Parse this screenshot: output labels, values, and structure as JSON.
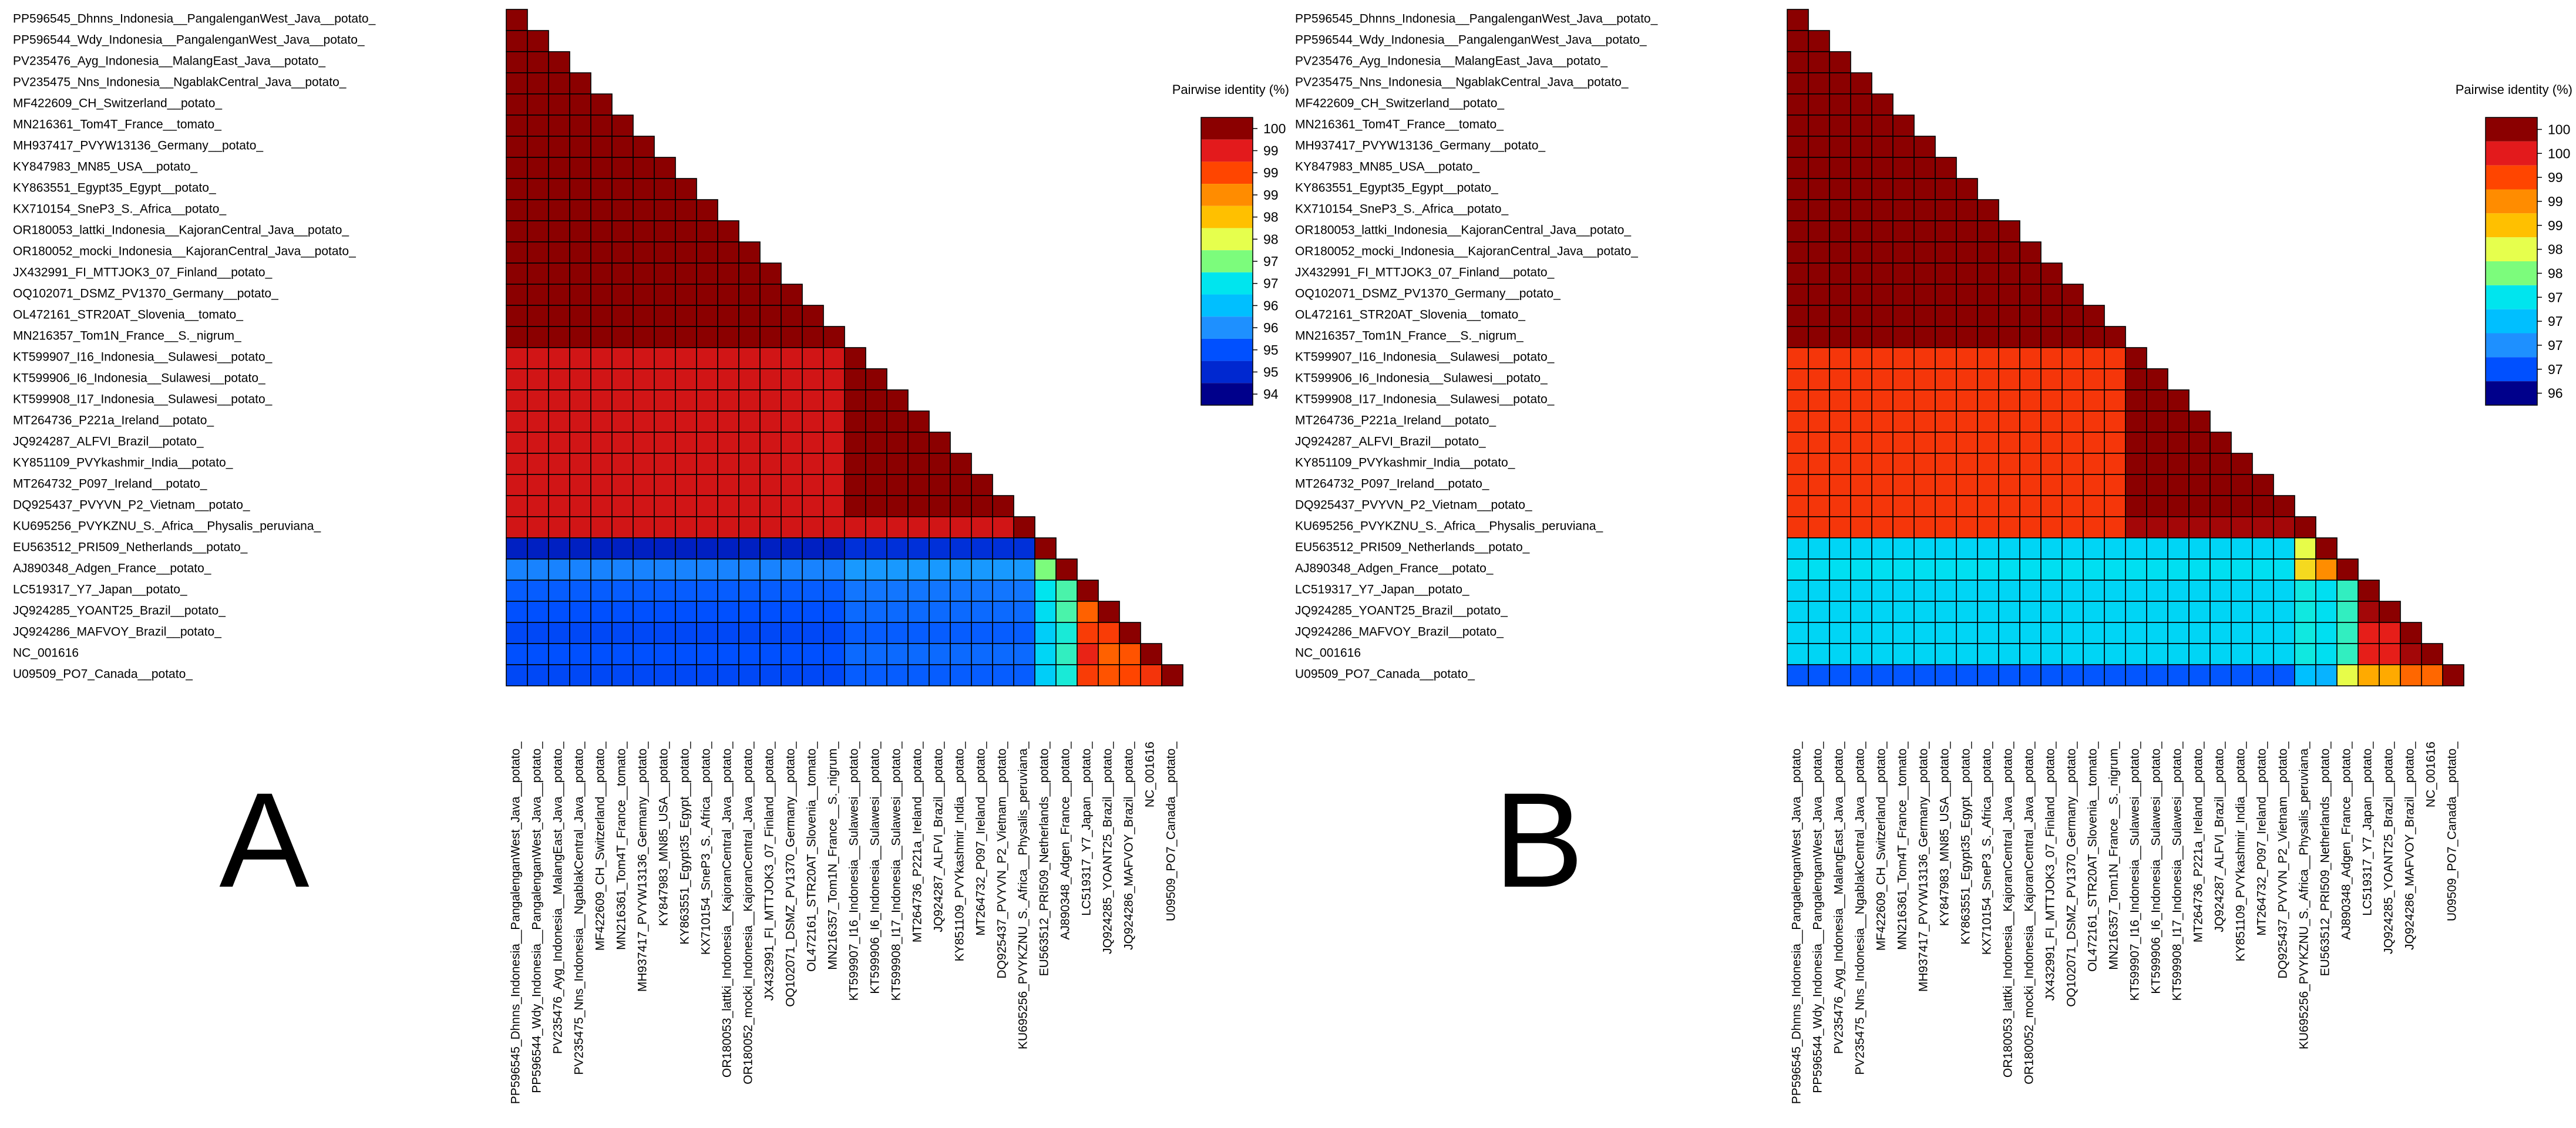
{
  "panels": [
    {
      "letter": "A",
      "legend_title": "Pairwise identity (%)",
      "legend_ticks": [
        "100",
        "99",
        "99",
        "99",
        "98",
        "98",
        "97",
        "97",
        "96",
        "96",
        "95",
        "95",
        "94"
      ],
      "colors": [
        "#8b0000",
        "#e31a1c",
        "#ff4500",
        "#ff8c00",
        "#ffc000",
        "#e6ff4d",
        "#7cfc7c",
        "#00e5ee",
        "#00bfff",
        "#1e90ff",
        "#0050ff",
        "#0028d0",
        "#00008b"
      ]
    },
    {
      "letter": "B",
      "legend_title": "Pairwise identity (%)",
      "legend_ticks": [
        "100",
        "100",
        "99",
        "99",
        "99",
        "98",
        "98",
        "97",
        "97",
        "97",
        "97",
        "96"
      ],
      "colors": [
        "#8b0000",
        "#e31a1c",
        "#ff4500",
        "#ff8c00",
        "#ffc000",
        "#e6ff4d",
        "#7cfc7c",
        "#00e5ee",
        "#00bfff",
        "#1e90ff",
        "#0050ff",
        "#00008b"
      ]
    }
  ],
  "chart_data": [
    {
      "type": "heatmap",
      "title": "A",
      "legend_title": "Pairwise identity (%)",
      "value_range": [
        94,
        100
      ],
      "labels": [
        "PP596545_Dhnns_Indonesia__PangalenganWest_Java__potato_",
        "PP596544_Wdy_Indonesia__PangalenganWest_Java__potato_",
        "PV235476_Ayg_Indonesia__MalangEast_Java__potato_",
        "PV235475_Nns_Indonesia__NgablakCentral_Java__potato_",
        "MF422609_CH_Switzerland__potato_",
        "MN216361_Tom4T_France__tomato_",
        "MH937417_PVYW13136_Germany__potato_",
        "KY847983_MN85_USA__potato_",
        "KY863551_Egypt35_Egypt__potato_",
        "KX710154_SneP3_S._Africa__potato_",
        "OR180053_lattki_Indonesia__KajoranCentral_Java__potato_",
        "OR180052_mocki_Indonesia__KajoranCentral_Java__potato_",
        "JX432991_FI_MTTJOK3_07_Finland__potato_",
        "OQ102071_DSMZ_PV1370_Germany__potato_",
        "OL472161_STR20AT_Slovenia__tomato_",
        "MN216357_Tom1N_France__S._nigrum_",
        "KT599907_I16_Indonesia__Sulawesi__potato_",
        "KT599906_I6_Indonesia__Sulawesi__potato_",
        "KT599908_I17_Indonesia__Sulawesi__potato_",
        "MT264736_P221a_Ireland__potato_",
        "JQ924287_ALFVI_Brazil__potato_",
        "KY851109_PVYkashmir_India__potato_",
        "MT264732_P097_Ireland__potato_",
        "DQ925437_PVYVN_P2_Vietnam__potato_",
        "KU695256_PVYKZNU_S._Africa__Physalis_peruviana_",
        "EU563512_PRI509_Netherlands__potato_",
        "AJ890348_Adgen_France__potato_",
        "LC519317_Y7_Japan__potato_",
        "JQ924285_YOANT25_Brazil__potato_",
        "JQ924286_MAFVOY_Brazil__potato_",
        "NC_001616",
        "U09509_PO7_Canada__potato_"
      ],
      "groups": [
        [
          0,
          15
        ],
        [
          16,
          23
        ],
        [
          24,
          24
        ],
        [
          25,
          25
        ],
        [
          26,
          26
        ],
        [
          27,
          27
        ],
        [
          28,
          28
        ],
        [
          29,
          29
        ],
        [
          30,
          30
        ],
        [
          31,
          31
        ]
      ],
      "group_matrix": [
        [
          100
        ],
        [
          99.6,
          100
        ],
        [
          99.6,
          99.6,
          100
        ],
        [
          94.4,
          94.6,
          94.6,
          100
        ],
        [
          95.4,
          95.6,
          95.6,
          97.0,
          100
        ],
        [
          95.1,
          95.3,
          95.3,
          96.5,
          96.8,
          100
        ],
        [
          95.0,
          95.2,
          95.2,
          96.4,
          96.8,
          98.8,
          100
        ],
        [
          94.9,
          95.1,
          95.1,
          96.2,
          96.6,
          99.1,
          99.1,
          100
        ],
        [
          95.0,
          95.2,
          95.2,
          96.3,
          96.7,
          99.4,
          98.8,
          98.9,
          100
        ],
        [
          94.9,
          95.1,
          95.1,
          96.2,
          96.6,
          99.1,
          98.9,
          99.0,
          99.2,
          100
        ]
      ]
    },
    {
      "type": "heatmap",
      "title": "B",
      "legend_title": "Pairwise identity (%)",
      "value_range": [
        96,
        100
      ],
      "labels": [
        "PP596545_Dhnns_Indonesia__PangalenganWest_Java__potato_",
        "PP596544_Wdy_Indonesia__PangalenganWest_Java__potato_",
        "PV235476_Ayg_Indonesia__MalangEast_Java__potato_",
        "PV235475_Nns_Indonesia__NgablakCentral_Java__potato_",
        "MF422609_CH_Switzerland__potato_",
        "MN216361_Tom4T_France__tomato_",
        "MH937417_PVYW13136_Germany__potato_",
        "KY847983_MN85_USA__potato_",
        "KY863551_Egypt35_Egypt__potato_",
        "KX710154_SneP3_S._Africa__potato_",
        "OR180053_lattki_Indonesia__KajoranCentral_Java__potato_",
        "OR180052_mocki_Indonesia__KajoranCentral_Java__potato_",
        "JX432991_FI_MTTJOK3_07_Finland__potato_",
        "OQ102071_DSMZ_PV1370_Germany__potato_",
        "OL472161_STR20AT_Slovenia__tomato_",
        "MN216357_Tom1N_France__S._nigrum_",
        "KT599907_I16_Indonesia__Sulawesi__potato_",
        "KT599906_I6_Indonesia__Sulawesi__potato_",
        "KT599908_I17_Indonesia__Sulawesi__potato_",
        "MT264736_P221a_Ireland__potato_",
        "JQ924287_ALFVI_Brazil__potato_",
        "KY851109_PVYkashmir_India__potato_",
        "MT264732_P097_Ireland__potato_",
        "DQ925437_PVYVN_P2_Vietnam__potato_",
        "KU695256_PVYKZNU_S._Africa__Physalis_peruviana_",
        "EU563512_PRI509_Netherlands__potato_",
        "AJ890348_Adgen_France__potato_",
        "LC519317_Y7_Japan__potato_",
        "JQ924285_YOANT25_Brazil__potato_",
        "JQ924286_MAFVOY_Brazil__potato_",
        "NC_001616",
        "U09509_PO7_Canada__potato_"
      ],
      "groups": [
        [
          0,
          15
        ],
        [
          16,
          23
        ],
        [
          24,
          24
        ],
        [
          25,
          25
        ],
        [
          26,
          26
        ],
        [
          27,
          27
        ],
        [
          28,
          28
        ],
        [
          29,
          29
        ],
        [
          30,
          30
        ],
        [
          31,
          31
        ]
      ],
      "group_matrix": [
        [
          100
        ],
        [
          99.4,
          100
        ],
        [
          99.4,
          99.9,
          100
        ],
        [
          97.3,
          97.3,
          98.2,
          100
        ],
        [
          97.4,
          97.4,
          98.4,
          98.9,
          100
        ],
        [
          97.3,
          97.3,
          97.5,
          97.4,
          97.6,
          100
        ],
        [
          97.3,
          97.3,
          97.5,
          97.4,
          97.6,
          99.9,
          100
        ],
        [
          97.3,
          97.3,
          97.5,
          97.4,
          97.6,
          99.6,
          99.6,
          100
        ],
        [
          97.3,
          97.3,
          97.5,
          97.4,
          97.6,
          99.6,
          99.6,
          99.9,
          100
        ],
        [
          96.4,
          96.4,
          97.1,
          97.0,
          98.2,
          98.7,
          98.7,
          99.1,
          99.1,
          100
        ]
      ]
    }
  ]
}
